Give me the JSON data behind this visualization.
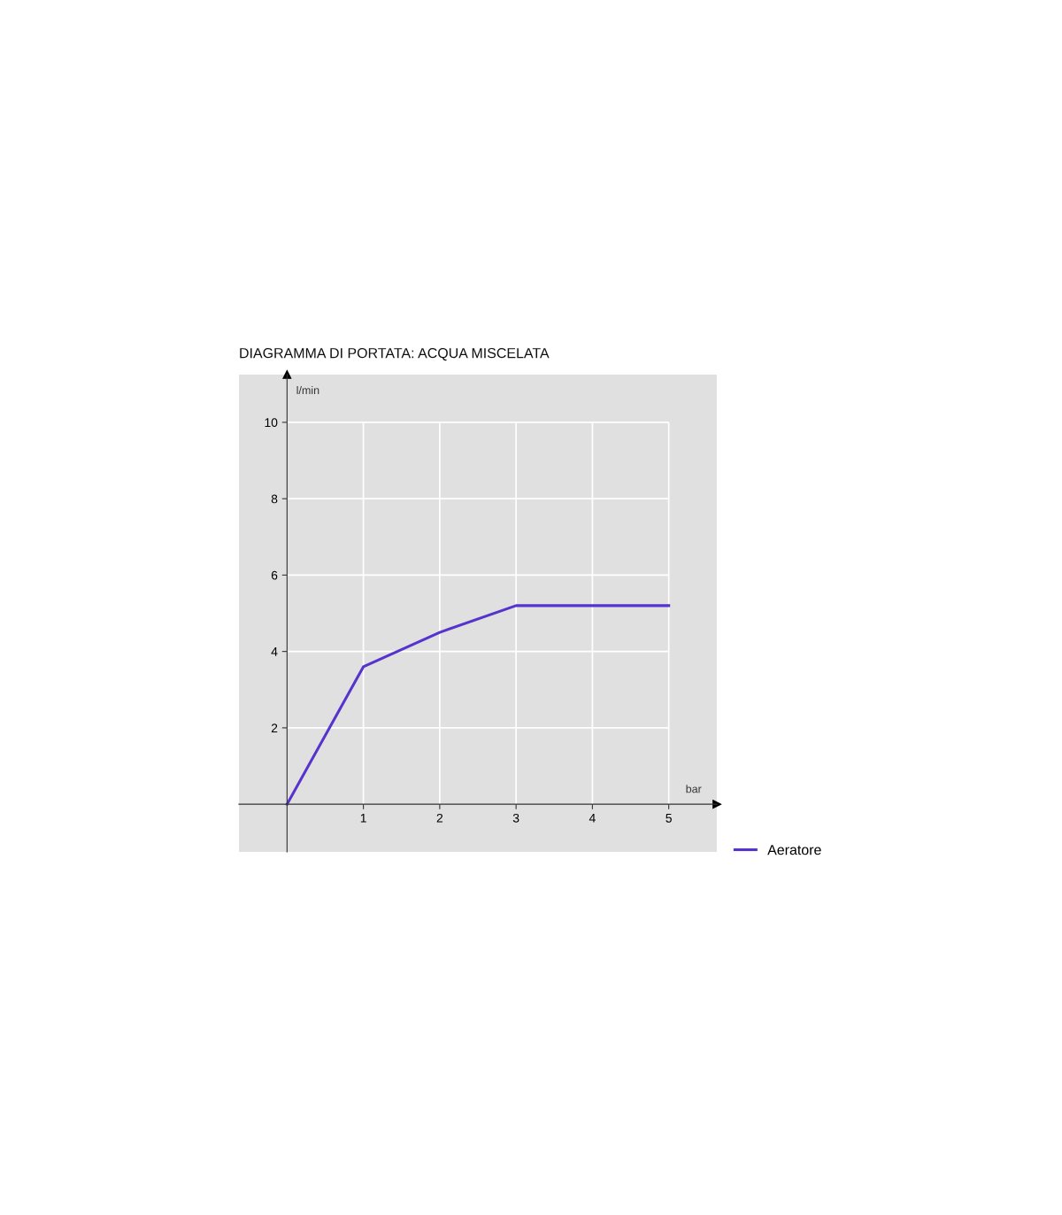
{
  "chart_data": {
    "type": "line",
    "title": "DIAGRAMMA DI PORTATA: ACQUA MISCELATA",
    "xlabel": "bar",
    "ylabel": "l/min",
    "x": [
      0,
      1,
      2,
      3,
      4,
      5
    ],
    "series": [
      {
        "name": "Aeratore",
        "color": "#5533cc",
        "values": [
          0,
          3.6,
          4.5,
          5.2,
          5.2,
          5.2
        ]
      }
    ],
    "xlim": [
      -0.63,
      5.63
    ],
    "ylim": [
      -1.25,
      11.25
    ],
    "xticks": [
      1,
      2,
      3,
      4,
      5
    ],
    "yticks": [
      2,
      4,
      6,
      8,
      10
    ],
    "grid": true,
    "legend": "bottom right"
  }
}
